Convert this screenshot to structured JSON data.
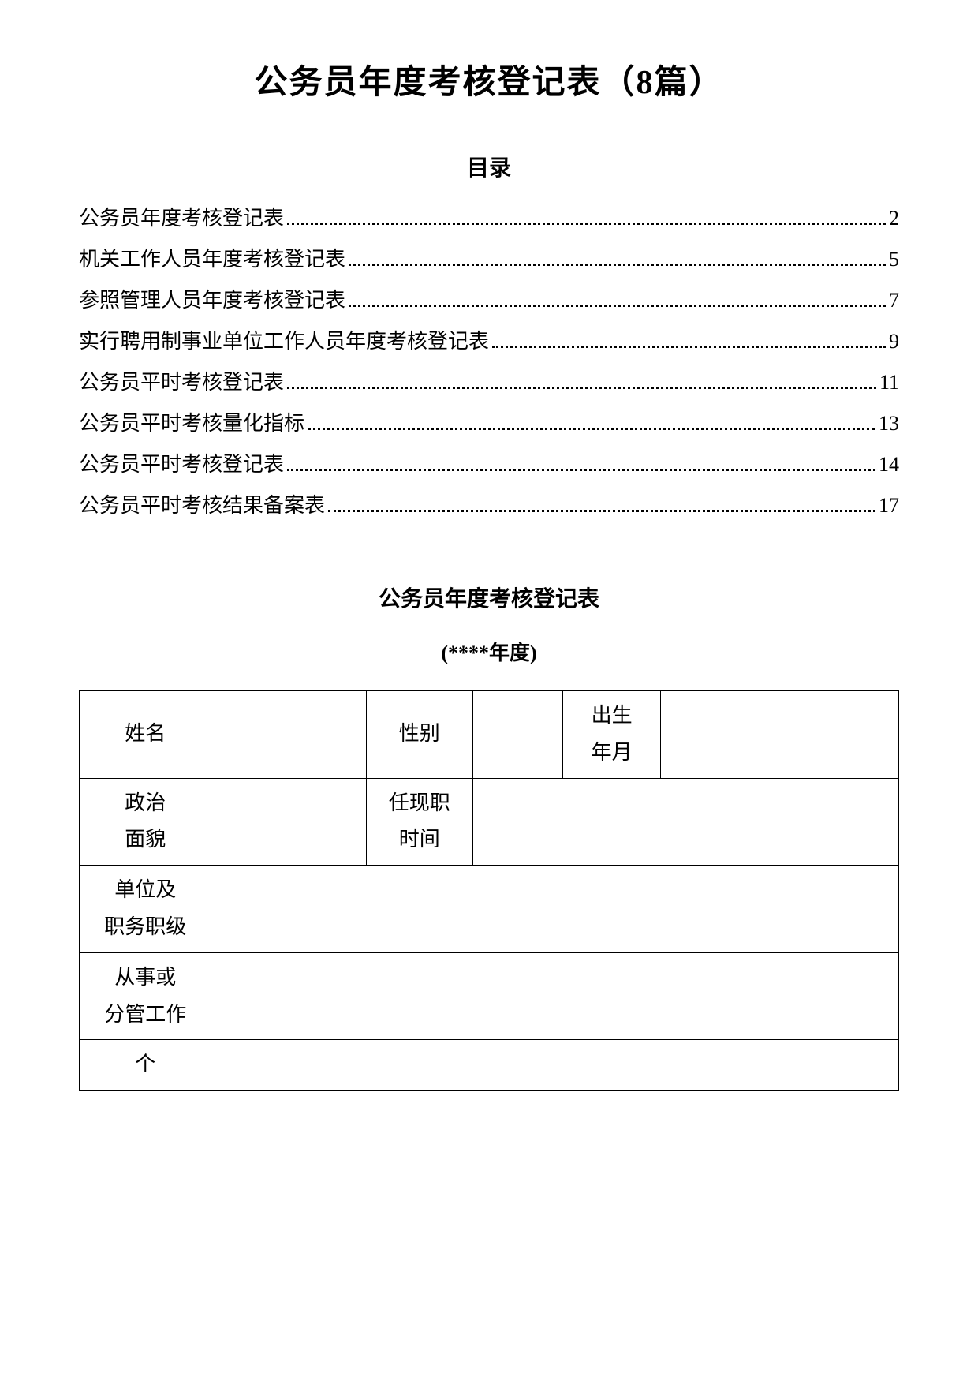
{
  "title": "公务员年度考核登记表（8篇）",
  "toc_title": "目录",
  "toc": [
    {
      "label": "公务员年度考核登记表",
      "page": "2"
    },
    {
      "label": "机关工作人员年度考核登记表",
      "page": "5"
    },
    {
      "label": "参照管理人员年度考核登记表",
      "page": "7"
    },
    {
      "label": "实行聘用制事业单位工作人员年度考核登记表",
      "page": "9"
    },
    {
      "label": "公务员平时考核登记表",
      "page": "11"
    },
    {
      "label": "公务员平时考核量化指标",
      "page": "13"
    },
    {
      "label": "公务员平时考核登记表",
      "page": "14"
    },
    {
      "label": "公务员平时考核结果备案表",
      "page": "17"
    }
  ],
  "section_title": "公务员年度考核登记表",
  "section_subtitle": "(****年度)",
  "form": {
    "name_label": "姓名",
    "gender_label": "性别",
    "birth_label": "出生\n年月",
    "political_label": "政治\n面貌",
    "position_time_label": "任现职\n时间",
    "unit_label": "单位及\n职务职级",
    "work_label": "从事或\n分管工作",
    "personal_label": "个"
  }
}
